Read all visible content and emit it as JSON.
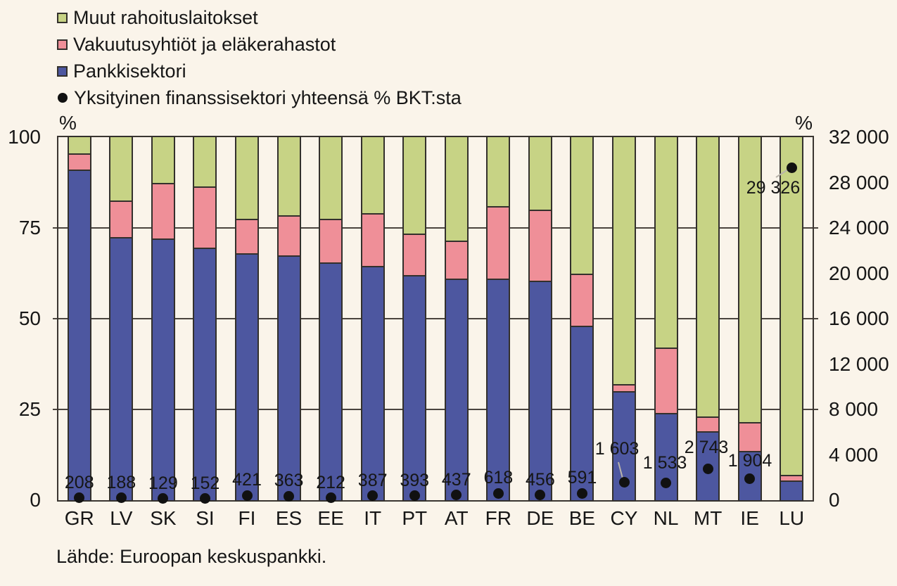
{
  "legend": {
    "items": [
      {
        "label": "Muut rahoituslaitokset",
        "marker": "square",
        "color": "#c7d385"
      },
      {
        "label": "Vakuutusyhtiöt ja eläkerahastot",
        "marker": "square",
        "color": "#ef8f98"
      },
      {
        "label": "Pankkisektori",
        "marker": "square",
        "color": "#4d57a0"
      },
      {
        "label": "Yksityinen finanssisektori yhteensä % BKT:sta",
        "marker": "dot",
        "color": "#111111"
      }
    ]
  },
  "chart_data": {
    "type": "bar",
    "subtype": "stacked-100pct-columns-with-dot-overlay",
    "categories": [
      "GR",
      "LV",
      "SK",
      "SI",
      "FI",
      "ES",
      "EE",
      "IT",
      "PT",
      "AT",
      "FR",
      "DE",
      "BE",
      "CY",
      "NL",
      "MT",
      "IE",
      "LU"
    ],
    "series": [
      {
        "name": "Pankkisektori",
        "color": "#4d57a0",
        "values": [
          91,
          72.5,
          72,
          69.5,
          68,
          67.5,
          65.5,
          64.5,
          62,
          61,
          61,
          60.5,
          48,
          30,
          24,
          19,
          13.5,
          5.5
        ]
      },
      {
        "name": "Vakuutusyhtiöt ja eläkerahastot",
        "color": "#ef8f98",
        "values": [
          4.5,
          10,
          15.5,
          17,
          9.5,
          11,
          12,
          14.5,
          11.5,
          10.5,
          20,
          19.5,
          14.5,
          2,
          18,
          4,
          8,
          1.5
        ]
      },
      {
        "name": "Muut rahoituslaitokset",
        "color": "#c7d385",
        "values": [
          4.5,
          17.5,
          12.5,
          13.5,
          22.5,
          21.5,
          22.5,
          21,
          26.5,
          28.5,
          19,
          20,
          37.5,
          68,
          58,
          77,
          78.5,
          93
        ]
      }
    ],
    "dot_series": {
      "name": "Yksityinen finanssisektori yhteensä % BKT:sta",
      "color": "#111111",
      "axis": "right",
      "values": [
        208,
        188,
        129,
        152,
        421,
        363,
        212,
        387,
        393,
        437,
        618,
        456,
        591,
        1603,
        1533,
        2743,
        1904,
        29326
      ],
      "labels": [
        "208",
        "188",
        "129",
        "152",
        "421",
        "363",
        "212",
        "387",
        "393",
        "437",
        "618",
        "456",
        "591",
        "1 603",
        "1 533",
        "2 743",
        "1 904",
        "29 326"
      ]
    },
    "left_axis": {
      "unit": "%",
      "range": [
        0,
        100
      ],
      "ticks": [
        "100",
        "75",
        "50",
        "25",
        "0"
      ],
      "tick_values": [
        100,
        75,
        50,
        25,
        0
      ]
    },
    "right_axis": {
      "unit": "%",
      "range": [
        0,
        32000
      ],
      "ticks": [
        "32 000",
        "28 000",
        "24 000",
        "20 000",
        "16 000",
        "12 000",
        "8 000",
        "4 000",
        "0"
      ],
      "tick_values": [
        32000,
        28000,
        24000,
        20000,
        16000,
        12000,
        8000,
        4000,
        0
      ]
    },
    "gridlines_at_left_percent": [
      75,
      50,
      25
    ],
    "legend_position": "top-left",
    "background_color": "#faf4ea"
  },
  "source_note": "Lähde: Euroopan keskuspankki."
}
